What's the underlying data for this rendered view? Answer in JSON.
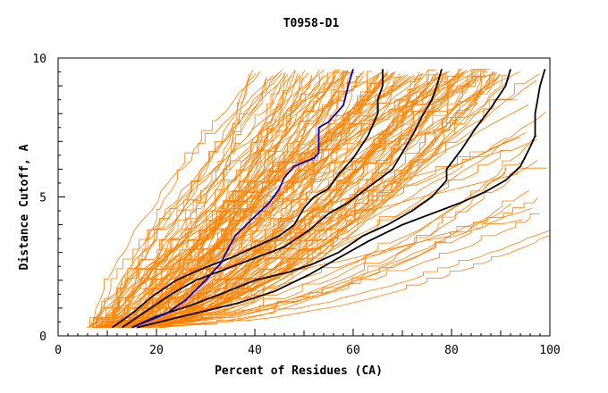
{
  "chart_data": {
    "type": "line",
    "title": "T0958-D1",
    "xlabel": "Percent of Residues (CA)",
    "ylabel": "Distance Cutoff, A",
    "xlim": [
      0,
      100
    ],
    "ylim": [
      0,
      10
    ],
    "x_ticks": [
      "0",
      "20",
      "40",
      "60",
      "80",
      "100"
    ],
    "y_ticks": [
      "0",
      "5",
      "10"
    ],
    "grid": false,
    "colors": {
      "background_models": "#ff8000",
      "highlight": "#0000cc",
      "reference": "#000000"
    },
    "highlight_series": {
      "x": [
        15,
        22,
        26,
        30,
        33,
        36,
        40,
        43,
        45,
        46,
        48,
        52,
        53,
        53,
        55,
        58,
        59,
        60
      ],
      "y": [
        0.3,
        0.8,
        1.3,
        2.0,
        2.6,
        3.6,
        4.3,
        4.8,
        5.3,
        5.7,
        6.1,
        6.4,
        6.6,
        7.5,
        7.7,
        8.3,
        9.0,
        9.6
      ]
    },
    "reference_series": [
      {
        "x": [
          11,
          15,
          19,
          24,
          29,
          35,
          40,
          45,
          48,
          50,
          52,
          55,
          57,
          60,
          63,
          65,
          65,
          66,
          66
        ],
        "y": [
          0.3,
          0.8,
          1.4,
          2.0,
          2.4,
          2.8,
          3.2,
          3.6,
          4.0,
          4.6,
          5.0,
          5.3,
          5.8,
          6.4,
          7.2,
          8.0,
          8.5,
          9.0,
          9.6
        ]
      },
      {
        "x": [
          13,
          18,
          23,
          28,
          34,
          40,
          46,
          51,
          55,
          59,
          62,
          65,
          68,
          70,
          72,
          74,
          76,
          77,
          78
        ],
        "y": [
          0.3,
          0.9,
          1.5,
          2.0,
          2.4,
          2.8,
          3.2,
          3.8,
          4.4,
          4.8,
          5.2,
          5.6,
          6.0,
          6.6,
          7.2,
          7.9,
          8.5,
          9.0,
          9.6
        ]
      },
      {
        "x": [
          15,
          20,
          27,
          33,
          40,
          47,
          52,
          57,
          62,
          67,
          72,
          76,
          79,
          79,
          82,
          85,
          88,
          91,
          92
        ],
        "y": [
          0.3,
          0.7,
          1.1,
          1.5,
          2.0,
          2.3,
          2.6,
          3.0,
          3.6,
          4.0,
          4.5,
          5.0,
          5.6,
          6.0,
          6.7,
          7.5,
          8.2,
          9.0,
          9.6
        ]
      },
      {
        "x": [
          16,
          23,
          30,
          37,
          44,
          51,
          57,
          63,
          70,
          76,
          82,
          87,
          91,
          94,
          96,
          97,
          97,
          98,
          99
        ],
        "y": [
          0.3,
          0.6,
          0.9,
          1.2,
          1.6,
          2.2,
          2.8,
          3.4,
          4.0,
          4.4,
          4.8,
          5.2,
          5.6,
          6.1,
          6.8,
          7.2,
          8.0,
          9.0,
          9.6
        ]
      }
    ]
  }
}
